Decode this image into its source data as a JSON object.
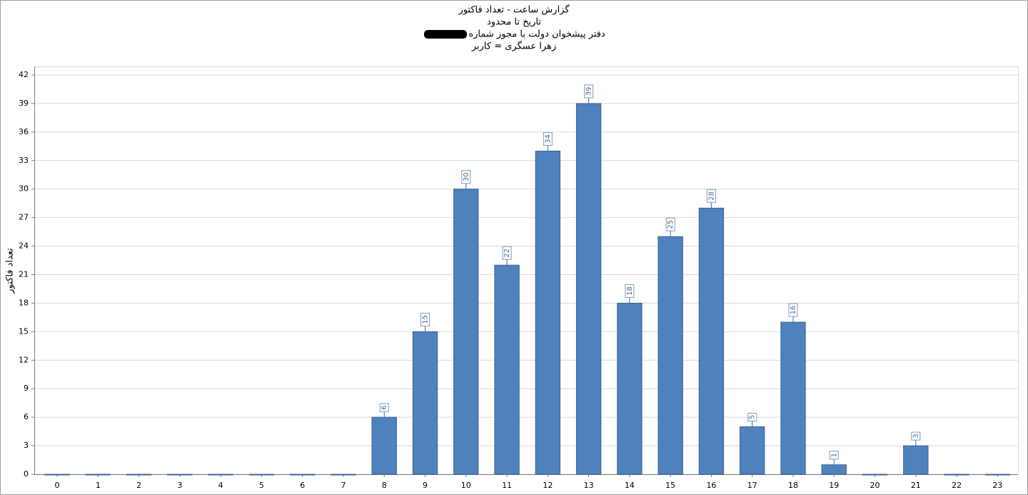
{
  "chart_data": {
    "type": "bar",
    "title": "گزارش ساعت - تعداد فاکتور",
    "subtitle": "تاریخ تا محدود",
    "subtitle_2": "دفتر پیشخوان دولت با مجوز شماره",
    "subtitle_3": "زهرا عسگری = کاربر",
    "y_label": "تعداد فاکتور",
    "categories": [
      "0",
      "1",
      "2",
      "3",
      "4",
      "5",
      "6",
      "7",
      "8",
      "9",
      "10",
      "11",
      "12",
      "13",
      "14",
      "15",
      "16",
      "17",
      "18",
      "19",
      "20",
      "21",
      "22",
      "23"
    ],
    "values": [
      0,
      0,
      0,
      0,
      0,
      0,
      0,
      0,
      6,
      15,
      30,
      22,
      34,
      39,
      18,
      25,
      28,
      5,
      16,
      1,
      0,
      3,
      0,
      0
    ],
    "color": "#4f81bd",
    "ylim": [
      0,
      42
    ],
    "yticks": [
      0,
      3,
      6,
      9,
      12,
      15,
      18,
      21,
      24,
      27,
      30,
      33,
      36,
      39,
      42
    ],
    "grid": true
  }
}
